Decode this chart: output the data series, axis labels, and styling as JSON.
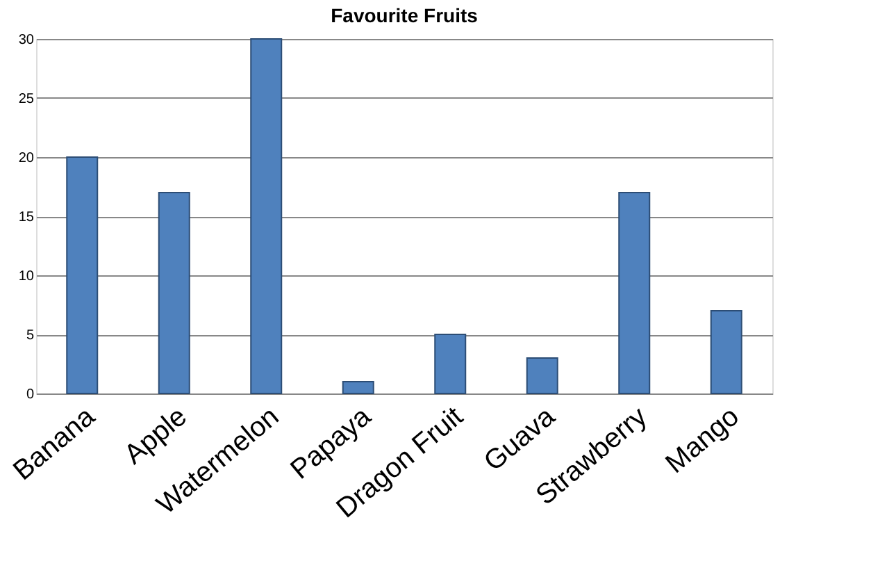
{
  "chart_data": {
    "type": "bar",
    "title": "Favourite Fruits",
    "categories": [
      "Banana",
      "Apple",
      "Watermelon",
      "Papaya",
      "Dragon Fruit",
      "Guava",
      "Strawberry",
      "Mango"
    ],
    "values": [
      20,
      17,
      30,
      1,
      5,
      3,
      17,
      7
    ],
    "color": "#4f81bd",
    "ylim": [
      0,
      30
    ],
    "yticks": [
      0,
      5,
      10,
      15,
      20,
      25,
      30
    ],
    "grid": "y"
  }
}
